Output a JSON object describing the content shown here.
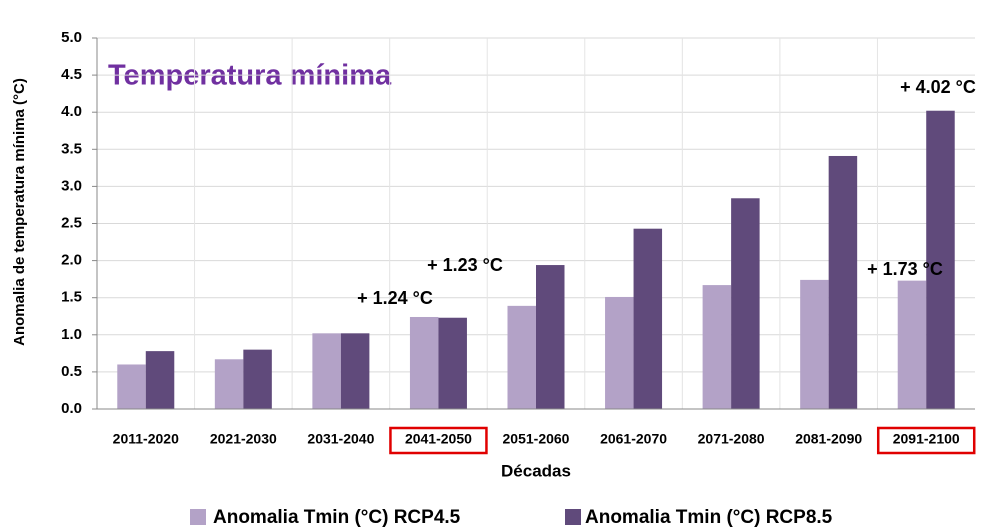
{
  "chart_data": {
    "type": "bar",
    "title": "Temperatura mínima",
    "x_label": "Décadas",
    "y_label": "Anomalia de temperatura mínima (°C)",
    "categories": [
      "2011-2020",
      "2021-2030",
      "2031-2040",
      "2041-2050",
      "2051-2060",
      "2061-2070",
      "2071-2080",
      "2081-2090",
      "2091-2100"
    ],
    "series": [
      {
        "name": "Anomalia Tmin (°C) RCP4.5",
        "color": "#b3a2c7",
        "values": [
          0.6,
          0.67,
          1.02,
          1.24,
          1.39,
          1.51,
          1.67,
          1.74,
          1.73
        ]
      },
      {
        "name": "Anomalia Tmin (°C) RCP8.5",
        "color": "#604a7b",
        "values": [
          0.78,
          0.8,
          1.02,
          1.23,
          1.94,
          2.43,
          2.84,
          3.41,
          4.02
        ]
      }
    ],
    "annotations": [
      "+ 1.24 °C",
      "+ 1.23 °C",
      "+ 1.73 °C",
      "+ 4.02 °C"
    ],
    "ylim": [
      0,
      5
    ],
    "yticks": [
      {
        "value": 0,
        "label": "0.0"
      },
      0.5,
      {
        "value": 1,
        "label": "1.0"
      },
      1.5,
      {
        "value": 2,
        "label": "2.0"
      },
      2.5,
      {
        "value": 3,
        "label": "3.0"
      },
      3.5,
      {
        "value": 4,
        "label": "4.0"
      },
      4.5,
      {
        "value": 5,
        "label": "5.0"
      }
    ],
    "grid": true,
    "title_color": "#7030a0",
    "highlight_color": "#e00000"
  }
}
